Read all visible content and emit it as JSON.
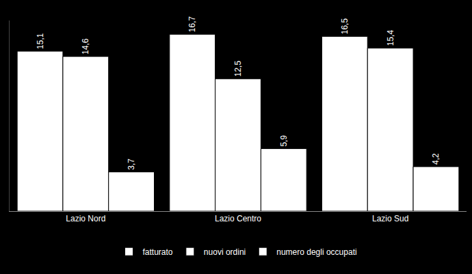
{
  "chart_data": {
    "type": "bar",
    "categories": [
      "Lazio Nord",
      "Lazio Centro",
      "Lazio Sud"
    ],
    "series": [
      {
        "name": "fatturato",
        "color": "#ffffff",
        "values": [
          15.1,
          16.7,
          16.5
        ],
        "value_labels": [
          "15,1",
          "16,7",
          "16,5"
        ]
      },
      {
        "name": "nuovi ordini",
        "color": "#ffffff",
        "values": [
          14.6,
          12.5,
          15.4
        ],
        "value_labels": [
          "14,6",
          "12,5",
          "15,4"
        ]
      },
      {
        "name": "numero degli occupati",
        "color": "#ffffff",
        "values": [
          3.7,
          5.9,
          4.2
        ],
        "value_labels": [
          "3,7",
          "5,9",
          "4,2"
        ]
      }
    ],
    "ylim": [
      0,
      18
    ],
    "grid": false,
    "legend": "bottom",
    "data_labels": true,
    "tick_labels": "x"
  }
}
